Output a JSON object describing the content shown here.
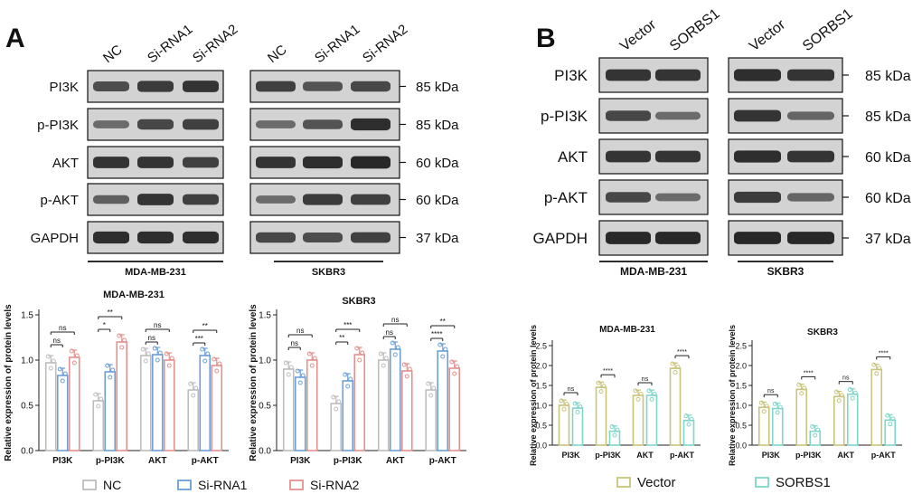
{
  "panel_a": {
    "letter": "A",
    "blot_lanes": [
      "NC",
      "Si-RNA1",
      "Si-RNA2"
    ],
    "blot_rows": [
      "PI3K",
      "p-PI3K",
      "AKT",
      "p-AKT",
      "GAPDH"
    ],
    "blot_kda": [
      "85 kDa",
      "85 kDa",
      "60 kDa",
      "60 kDa",
      "37 kDa"
    ],
    "cell_lines": [
      "MDA-MB-231",
      "SKBR3"
    ],
    "legend": [
      "NC",
      "Si-RNA1",
      "Si-RNA2"
    ]
  },
  "panel_b": {
    "letter": "B",
    "blot_lanes": [
      "Vector",
      "SORBS1"
    ],
    "blot_rows": [
      "PI3K",
      "p-PI3K",
      "AKT",
      "p-AKT",
      "GAPDH"
    ],
    "blot_kda": [
      "85 kDa",
      "85 kDa",
      "60 kDa",
      "60 kDa",
      "37 kDa"
    ],
    "cell_lines": [
      "MDA-MB-231",
      "SKBR3"
    ],
    "legend": [
      "Vector",
      "SORBS1"
    ]
  },
  "colors": {
    "nc": "#bdbdbd",
    "sirna1": "#6a9fd8",
    "sirna2": "#e3908d",
    "vector": "#c8c47a",
    "sorbs1": "#7fd6c9",
    "blot_bg": "#d3d3d3",
    "band": "#151515"
  },
  "chart_data": [
    {
      "type": "bar",
      "title": "MDA-MB-231",
      "ylabel": "Relative expression of protein levels",
      "categories": [
        "PI3K",
        "p-PI3K",
        "AKT",
        "p-AKT"
      ],
      "yticks": [
        "0.0",
        "0.5",
        "1.0",
        "1.5"
      ],
      "ylim": [
        0,
        1.5
      ],
      "series": [
        {
          "name": "NC",
          "values": [
            0.97,
            0.55,
            1.05,
            0.67
          ]
        },
        {
          "name": "Si-RNA1",
          "values": [
            0.83,
            0.87,
            1.06,
            1.05
          ]
        },
        {
          "name": "Si-RNA2",
          "values": [
            1.03,
            1.2,
            1.0,
            0.94
          ]
        }
      ],
      "significance": [
        {
          "category": "PI3K",
          "labels": [
            "ns",
            "ns"
          ]
        },
        {
          "category": "p-PI3K",
          "labels": [
            "*",
            "**"
          ]
        },
        {
          "category": "AKT",
          "labels": [
            "ns",
            "ns"
          ]
        },
        {
          "category": "p-AKT",
          "labels": [
            "***",
            "**"
          ]
        }
      ]
    },
    {
      "type": "bar",
      "title": "SKBR3",
      "ylabel": "Relative expression of protein levels",
      "categories": [
        "PI3K",
        "p-PI3K",
        "AKT",
        "p-AKT"
      ],
      "yticks": [
        "0.0",
        "0.5",
        "1.0",
        "1.5"
      ],
      "ylim": [
        0,
        1.5
      ],
      "series": [
        {
          "name": "NC",
          "values": [
            0.9,
            0.52,
            1.0,
            0.67
          ]
        },
        {
          "name": "Si-RNA1",
          "values": [
            0.81,
            0.77,
            1.12,
            1.1
          ]
        },
        {
          "name": "Si-RNA2",
          "values": [
            1.0,
            1.06,
            0.88,
            0.91
          ]
        }
      ],
      "significance": [
        {
          "category": "PI3K",
          "labels": [
            "ns",
            "ns"
          ]
        },
        {
          "category": "p-PI3K",
          "labels": [
            "**",
            "***"
          ]
        },
        {
          "category": "AKT",
          "labels": [
            "ns",
            "ns"
          ]
        },
        {
          "category": "p-AKT",
          "labels": [
            "****",
            "**"
          ]
        }
      ]
    },
    {
      "type": "bar",
      "title": "MDA-MB-231",
      "ylabel": "Relative expression of protein levels",
      "categories": [
        "PI3K",
        "p-PI3K",
        "AKT",
        "p-AKT"
      ],
      "yticks": [
        "0.0",
        "0.5",
        "1.0",
        "1.5",
        "2.0",
        "2.5"
      ],
      "ylim": [
        0,
        2.5
      ],
      "series": [
        {
          "name": "Vector",
          "values": [
            1.0,
            1.45,
            1.25,
            1.93
          ]
        },
        {
          "name": "SORBS1",
          "values": [
            0.93,
            0.35,
            1.25,
            0.62
          ]
        }
      ],
      "significance": [
        {
          "category": "PI3K",
          "labels": [
            "ns"
          ]
        },
        {
          "category": "p-PI3K",
          "labels": [
            "****"
          ]
        },
        {
          "category": "AKT",
          "labels": [
            "ns"
          ]
        },
        {
          "category": "p-AKT",
          "labels": [
            "****"
          ]
        }
      ]
    },
    {
      "type": "bar",
      "title": "SKBR3",
      "ylabel": "Relative expression of protein levels",
      "categories": [
        "PI3K",
        "p-PI3K",
        "AKT",
        "p-AKT"
      ],
      "yticks": [
        "0.0",
        "0.5",
        "1.0",
        "1.5",
        "2.0",
        "2.5"
      ],
      "ylim": [
        0,
        2.5
      ],
      "series": [
        {
          "name": "Vector",
          "values": [
            0.95,
            1.4,
            1.22,
            1.9
          ]
        },
        {
          "name": "SORBS1",
          "values": [
            0.92,
            0.35,
            1.28,
            0.63
          ]
        }
      ],
      "significance": [
        {
          "category": "PI3K",
          "labels": [
            "ns"
          ]
        },
        {
          "category": "p-PI3K",
          "labels": [
            "****"
          ]
        },
        {
          "category": "AKT",
          "labels": [
            "ns"
          ]
        },
        {
          "category": "p-AKT",
          "labels": [
            "****"
          ]
        }
      ]
    }
  ]
}
